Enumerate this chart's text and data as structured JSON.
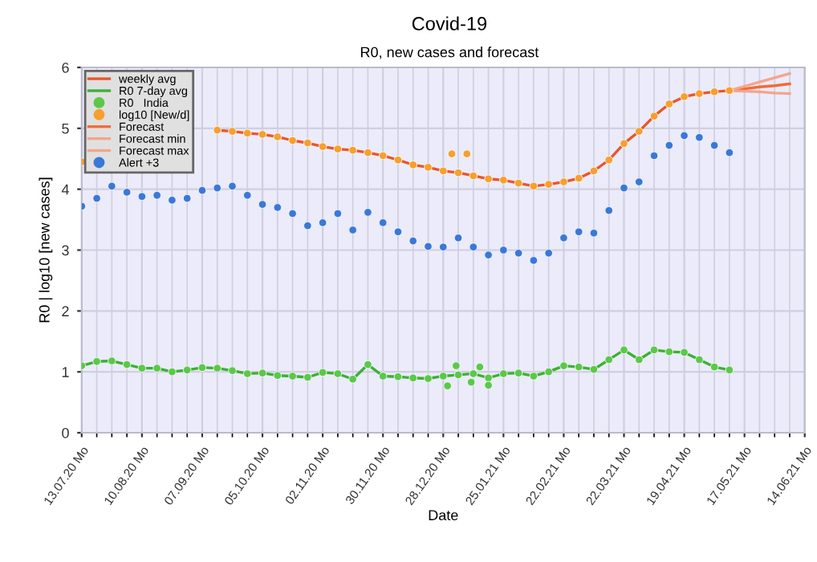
{
  "chart_data": {
    "type": "line",
    "title": "Covid-19",
    "subtitle": "R0, new cases and forecast",
    "xlabel": "Date",
    "ylabel": "R0 | log10 [new cases]",
    "x": [
      "2020-07-13",
      "2020-07-20",
      "2020-07-27",
      "2020-08-03",
      "2020-08-10",
      "2020-08-17",
      "2020-08-24",
      "2020-08-31",
      "2020-09-07",
      "2020-09-14",
      "2020-09-21",
      "2020-09-28",
      "2020-10-05",
      "2020-10-12",
      "2020-10-19",
      "2020-10-26",
      "2020-11-02",
      "2020-11-09",
      "2020-11-16",
      "2020-11-23",
      "2020-11-30",
      "2020-12-07",
      "2020-12-14",
      "2020-12-21",
      "2020-12-28",
      "2021-01-04",
      "2021-01-11",
      "2021-01-18",
      "2021-01-25",
      "2021-02-01",
      "2021-02-08",
      "2021-02-15",
      "2021-02-22",
      "2021-03-01",
      "2021-03-08",
      "2021-03-15",
      "2021-03-22",
      "2021-03-29",
      "2021-04-05",
      "2021-04-12",
      "2021-04-19",
      "2021-04-26",
      "2021-05-03",
      "2021-05-10"
    ],
    "series": [
      {
        "name": "weekly avg",
        "color": "#e8562a",
        "values": [
          null,
          null,
          null,
          null,
          null,
          null,
          null,
          null,
          null,
          4.97,
          4.95,
          4.92,
          4.9,
          4.86,
          4.8,
          4.76,
          4.7,
          4.66,
          4.64,
          4.6,
          4.55,
          4.48,
          4.4,
          4.36,
          4.3,
          4.27,
          4.22,
          4.17,
          4.15,
          4.1,
          4.05,
          4.08,
          4.12,
          4.18,
          4.3,
          4.48,
          4.75,
          4.95,
          5.2,
          5.4,
          5.52,
          5.57,
          5.6,
          5.62
        ]
      },
      {
        "name": "R0 7-day avg",
        "color": "#3cb034",
        "values": [
          1.1,
          1.17,
          1.18,
          1.12,
          1.06,
          1.06,
          1.0,
          1.03,
          1.07,
          1.06,
          1.02,
          0.97,
          0.98,
          0.94,
          0.93,
          0.91,
          0.99,
          0.97,
          0.88,
          1.12,
          0.93,
          0.92,
          0.9,
          0.89,
          0.93,
          0.95,
          0.97,
          0.9,
          0.97,
          0.98,
          0.93,
          1.0,
          1.1,
          1.08,
          1.04,
          1.2,
          1.36,
          1.2,
          1.36,
          1.33,
          1.32,
          1.2,
          1.08,
          1.03
        ]
      },
      {
        "name": "R0   India",
        "type": "scatter",
        "marker": "circle",
        "color": "#5cc84a",
        "x": [
          "2020-07-13",
          "2020-07-20",
          "2020-07-27",
          "2020-08-03",
          "2020-08-10",
          "2020-08-17",
          "2020-08-24",
          "2020-08-31",
          "2020-09-07",
          "2020-09-14",
          "2020-09-21",
          "2020-09-28",
          "2020-10-05",
          "2020-10-12",
          "2020-10-19",
          "2020-10-26",
          "2020-11-02",
          "2020-11-09",
          "2020-11-16",
          "2020-11-23",
          "2020-11-30",
          "2020-12-07",
          "2020-12-14",
          "2020-12-21",
          "2020-12-28",
          "2021-01-04",
          "2021-01-11",
          "2021-01-18",
          "2021-01-25",
          "2021-02-01",
          "2021-02-08",
          "2021-02-15",
          "2021-02-22",
          "2021-03-01",
          "2021-03-08",
          "2021-03-15",
          "2021-03-22",
          "2021-03-29",
          "2021-04-05",
          "2021-04-12",
          "2021-04-19",
          "2021-04-26",
          "2021-05-03",
          "2021-05-10",
          "2020-12-30",
          "2021-01-03",
          "2021-01-10",
          "2021-01-14",
          "2021-01-18"
        ],
        "values": [
          1.1,
          1.17,
          1.18,
          1.12,
          1.06,
          1.06,
          1.0,
          1.03,
          1.07,
          1.06,
          1.02,
          0.97,
          0.98,
          0.94,
          0.93,
          0.91,
          0.99,
          0.97,
          0.88,
          1.12,
          0.93,
          0.92,
          0.9,
          0.89,
          0.93,
          0.95,
          0.97,
          0.9,
          0.97,
          0.98,
          0.93,
          1.0,
          1.1,
          1.08,
          1.04,
          1.2,
          1.36,
          1.2,
          1.36,
          1.33,
          1.32,
          1.2,
          1.08,
          1.03,
          0.77,
          1.1,
          0.83,
          1.08,
          0.78
        ]
      },
      {
        "name": "log10 [New/d]",
        "type": "scatter",
        "marker": "circle",
        "color": "#f5a030",
        "x": [
          "2020-07-13",
          "2020-07-20",
          "2020-07-27",
          "2020-08-03",
          "2020-08-10",
          "2020-08-17",
          "2020-08-24",
          "2020-08-31",
          "2020-09-07",
          "2020-09-14",
          "2020-09-21",
          "2020-09-28",
          "2020-10-05",
          "2020-10-12",
          "2020-10-19",
          "2020-10-26",
          "2020-11-02",
          "2020-11-09",
          "2020-11-16",
          "2020-11-23",
          "2020-11-30",
          "2020-12-07",
          "2020-12-14",
          "2020-12-21",
          "2020-12-28",
          "2021-01-04",
          "2021-01-11",
          "2021-01-18",
          "2021-01-25",
          "2021-02-01",
          "2021-02-08",
          "2021-02-15",
          "2021-02-22",
          "2021-03-01",
          "2021-03-08",
          "2021-03-15",
          "2021-03-22",
          "2021-03-29",
          "2021-04-05",
          "2021-04-12",
          "2021-04-19",
          "2021-04-26",
          "2021-05-03",
          "2021-05-10",
          "2021-01-01",
          "2021-01-08"
        ],
        "values": [
          4.45,
          null,
          null,
          null,
          null,
          null,
          null,
          null,
          null,
          4.97,
          4.95,
          4.92,
          4.9,
          4.86,
          4.8,
          4.76,
          4.7,
          4.66,
          4.64,
          4.6,
          4.55,
          4.48,
          4.4,
          4.36,
          4.3,
          4.27,
          4.22,
          4.17,
          4.15,
          4.1,
          4.05,
          4.08,
          4.12,
          4.18,
          4.3,
          4.48,
          4.75,
          4.95,
          5.2,
          5.4,
          5.52,
          5.57,
          5.6,
          5.62,
          4.58,
          4.58
        ]
      },
      {
        "name": "Forecast",
        "color": "#f26b38",
        "x": [
          "2021-05-10",
          "2021-05-17",
          "2021-05-24",
          "2021-05-31",
          "2021-06-07"
        ],
        "values": [
          5.62,
          5.65,
          5.68,
          5.7,
          5.73
        ]
      },
      {
        "name": "Forecast min",
        "color": "#f4a58a",
        "x": [
          "2021-05-10",
          "2021-05-17",
          "2021-05-24",
          "2021-05-31",
          "2021-06-07"
        ],
        "values": [
          5.62,
          5.61,
          5.6,
          5.58,
          5.57
        ]
      },
      {
        "name": "Forecast max",
        "color": "#f4a58a",
        "x": [
          "2021-05-10",
          "2021-05-17",
          "2021-05-24",
          "2021-05-31",
          "2021-06-07"
        ],
        "values": [
          5.62,
          5.69,
          5.76,
          5.83,
          5.9
        ]
      },
      {
        "name": "Alert +3",
        "type": "scatter",
        "marker": "circle",
        "color": "#3a78d8",
        "values": [
          3.72,
          3.85,
          4.05,
          3.95,
          3.88,
          3.9,
          3.82,
          3.85,
          3.98,
          4.02,
          4.05,
          3.9,
          3.75,
          3.7,
          3.6,
          3.4,
          3.45,
          3.6,
          3.33,
          3.62,
          3.45,
          3.3,
          3.15,
          3.06,
          3.05,
          3.2,
          3.05,
          2.92,
          3.0,
          2.95,
          2.83,
          2.95,
          3.2,
          3.3,
          3.28,
          3.65,
          4.02,
          4.12,
          4.55,
          4.72,
          4.88,
          4.85,
          4.72,
          4.6
        ]
      }
    ],
    "xlim": [
      "2020-07-13",
      "2021-06-14"
    ],
    "xticks": [
      {
        "value": "2020-07-13",
        "label": "13.07.20 Mo"
      },
      {
        "value": "2020-08-10",
        "label": "10.08.20 Mo"
      },
      {
        "value": "2020-09-07",
        "label": "07.09.20 Mo"
      },
      {
        "value": "2020-10-05",
        "label": "05.10.20 Mo"
      },
      {
        "value": "2020-11-02",
        "label": "02.11.20 Mo"
      },
      {
        "value": "2020-11-30",
        "label": "30.11.20 Mo"
      },
      {
        "value": "2020-12-28",
        "label": "28.12.20 Mo"
      },
      {
        "value": "2021-01-25",
        "label": "25.01.21 Mo"
      },
      {
        "value": "2021-02-22",
        "label": "22.02.21 Mo"
      },
      {
        "value": "2021-03-22",
        "label": "22.03.21 Mo"
      },
      {
        "value": "2021-04-19",
        "label": "19.04.21 Mo"
      },
      {
        "value": "2021-05-17",
        "label": "17.05.21 Mo"
      },
      {
        "value": "2021-06-14",
        "label": "14.06.21 Mo"
      }
    ],
    "ylim": [
      0,
      6
    ],
    "yticks": [
      0,
      1,
      2,
      3,
      4,
      5,
      6
    ],
    "grid": true,
    "legend": "top left"
  }
}
